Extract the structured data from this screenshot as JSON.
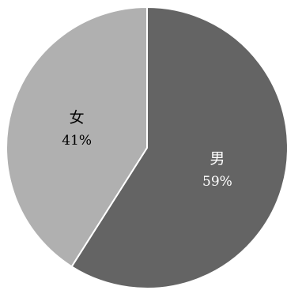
{
  "chart_data": {
    "type": "pie",
    "title": "",
    "start_angle_deg": 0,
    "direction": "clockwise",
    "slices": [
      {
        "label": "男",
        "value": 59,
        "value_label": "59%",
        "color": "#646464",
        "text_color": "#ffffff"
      },
      {
        "label": "女",
        "value": 41,
        "value_label": "41%",
        "color": "#b0b0b0",
        "text_color": "#000000"
      }
    ],
    "slice_border_color": "#ffffff",
    "legend": "none"
  }
}
